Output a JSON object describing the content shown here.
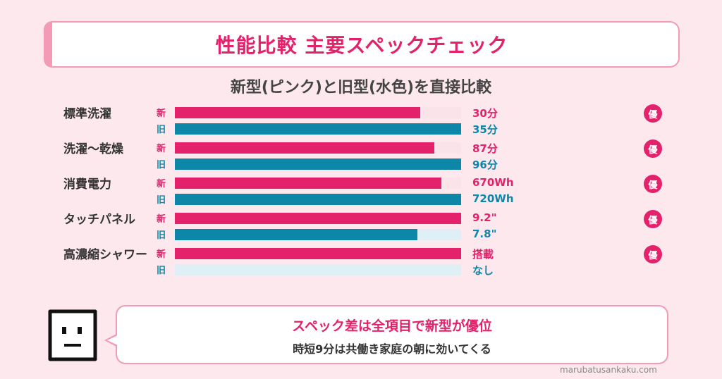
{
  "title": "性能比較 主要スペックチェック",
  "subtitle": "新型(ピンク)と旧型(水色)を直接比較",
  "tags": {
    "new": "新",
    "old": "旧"
  },
  "badge_label": "優",
  "colors": {
    "new": "#e4216b",
    "old": "#0e86a8",
    "background": "#fde8ee",
    "accent_border": "#f29ab6"
  },
  "chart_data": {
    "type": "bar",
    "title": "新型(ピンク)と旧型(水色)を直接比較",
    "categories": [
      "標準洗濯",
      "洗濯〜乾燥",
      "消費電力",
      "タッチパネル",
      "高濃縮シャワー"
    ],
    "series": [
      {
        "name": "新型(ピンク)",
        "values": [
          30,
          87,
          670,
          9.2,
          1
        ],
        "labels": [
          "30分",
          "87分",
          "670Wh",
          "9.2\"",
          "搭載"
        ]
      },
      {
        "name": "旧型(水色)",
        "values": [
          35,
          96,
          720,
          7.8,
          0
        ],
        "labels": [
          "35分",
          "96分",
          "720Wh",
          "7.8\"",
          "なし"
        ]
      }
    ],
    "badges": [
      "優",
      "優",
      "優",
      "優",
      "優"
    ],
    "legend": "none",
    "grid": false
  },
  "note": {
    "main": "スペック差は全項目で新型が優位",
    "sub": "時短9分は共働き家庭の朝に効いてくる"
  },
  "mascot_icon": "square-face-icon",
  "credit": "marubatusankaku.com"
}
